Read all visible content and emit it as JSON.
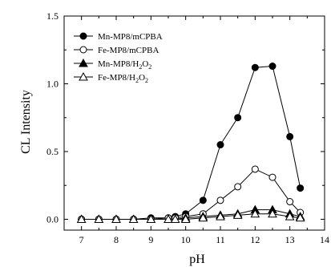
{
  "chart_data": {
    "type": "line",
    "title": "",
    "xlabel": "pH",
    "ylabel": "CL Intensity",
    "xlim": [
      6.5,
      14
    ],
    "ylim": [
      -0.08,
      1.5
    ],
    "xticks": [
      7,
      8,
      9,
      10,
      11,
      12,
      13,
      14
    ],
    "yticks": [
      0.0,
      0.5,
      1.0,
      1.5
    ],
    "xtick_labels": [
      "7",
      "8",
      "9",
      "10",
      "11",
      "12",
      "13",
      "14"
    ],
    "ytick_labels": [
      "0.0",
      "0.5",
      "1.0",
      "1.5"
    ],
    "grid": false,
    "legend_position": "top-left",
    "x": [
      7.0,
      7.5,
      8.0,
      8.5,
      9.0,
      9.5,
      9.7,
      10.0,
      10.5,
      11.0,
      11.5,
      12.0,
      12.5,
      13.0,
      13.3
    ],
    "series": [
      {
        "name": "Mn-MP8/mCPBA",
        "legend_main": "Mn-MP8/mCPBA",
        "legend_sub": "",
        "legend_tail": "",
        "marker": "circle-filled",
        "color": "#000000",
        "values": [
          0.0,
          0.0,
          0.0,
          0.0,
          0.01,
          0.01,
          0.02,
          0.04,
          0.14,
          0.55,
          0.75,
          1.12,
          1.13,
          0.61,
          0.23
        ]
      },
      {
        "name": "Fe-MP8/mCPBA",
        "legend_main": "Fe-MP8/mCPBA",
        "legend_sub": "",
        "legend_tail": "",
        "marker": "circle-open",
        "color": "#000000",
        "values": [
          0.0,
          0.0,
          0.0,
          0.0,
          0.0,
          0.01,
          0.01,
          0.02,
          0.04,
          0.14,
          0.24,
          0.37,
          0.31,
          0.13,
          0.05
        ]
      },
      {
        "name": "Mn-MP8/H2O2",
        "legend_main": "Mn-MP8/H",
        "legend_sub": "2",
        "legend_tail": "O",
        "legend_sub2": "2",
        "marker": "triangle-filled",
        "color": "#000000",
        "values": [
          0.0,
          0.0,
          0.0,
          0.0,
          0.0,
          0.0,
          0.0,
          0.01,
          0.02,
          0.03,
          0.04,
          0.07,
          0.07,
          0.04,
          0.02
        ]
      },
      {
        "name": "Fe-MP8/H2O2",
        "legend_main": "Fe-MP8/H",
        "legend_sub": "2",
        "legend_tail": "O",
        "legend_sub2": "2",
        "marker": "triangle-open",
        "color": "#000000",
        "values": [
          0.0,
          0.0,
          0.0,
          0.0,
          0.0,
          0.0,
          0.0,
          0.0,
          0.01,
          0.02,
          0.03,
          0.04,
          0.04,
          0.02,
          0.01
        ]
      }
    ]
  }
}
